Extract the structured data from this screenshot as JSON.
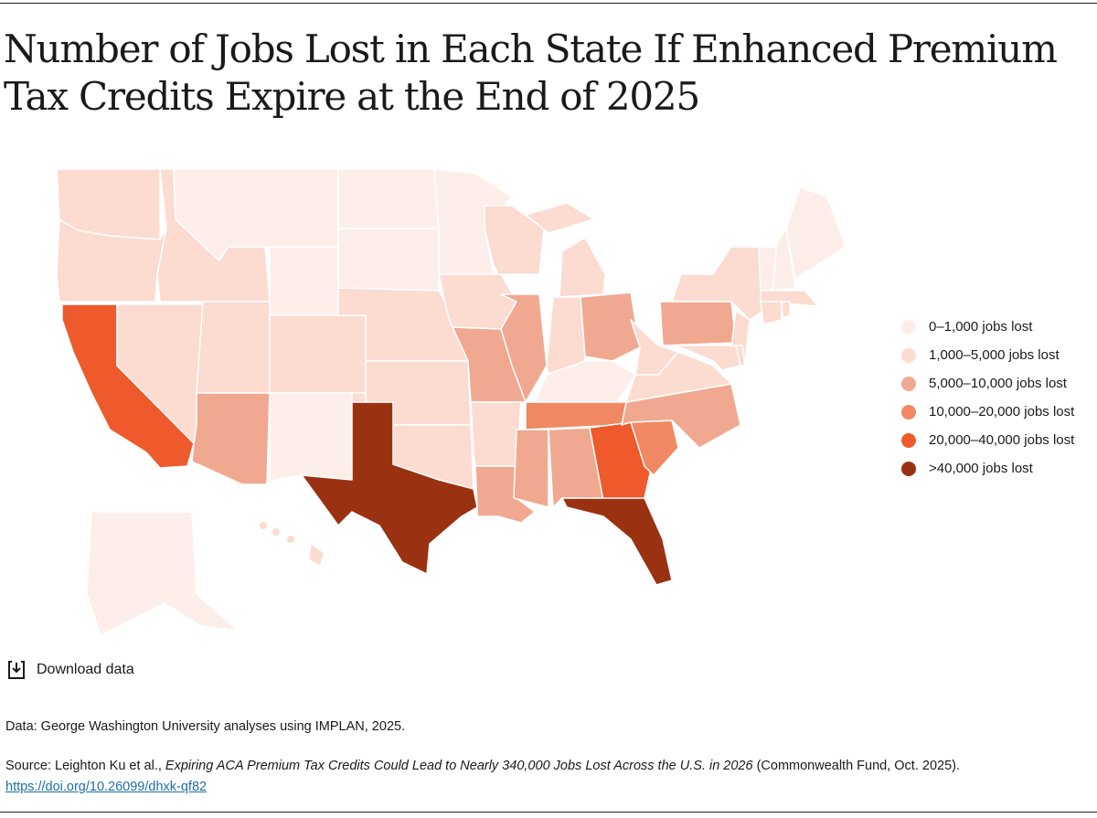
{
  "title": "Number of Jobs Lost in Each State If Enhanced Premium Tax Credits Expire at the End of 2025",
  "legend": [
    {
      "label": "0–1,000 jobs lost",
      "color": "#fdeeea"
    },
    {
      "label": "1,000–5,000 jobs lost",
      "color": "#fcdbd0"
    },
    {
      "label": "5,000–10,000 jobs lost",
      "color": "#f0a990"
    },
    {
      "label": "10,000–20,000 jobs lost",
      "color": "#f08963"
    },
    {
      "label": "20,000–40,000 jobs lost",
      "color": "#ee5a2b"
    },
    {
      "label": ">40,000 jobs lost",
      "color": "#9a3211"
    }
  ],
  "chart_data": {
    "type": "choropleth",
    "legend_placement": "right",
    "state_bins": {
      "WA": 1,
      "OR": 1,
      "CA": 4,
      "NV": 1,
      "ID": 1,
      "MT": 0,
      "WY": 0,
      "UT": 1,
      "AZ": 2,
      "NM": 0,
      "CO": 1,
      "ND": 0,
      "SD": 0,
      "NE": 1,
      "KS": 1,
      "OK": 1,
      "TX": 5,
      "MN": 0,
      "IA": 1,
      "MO": 2,
      "AR": 1,
      "LA": 2,
      "WI": 1,
      "IL": 2,
      "MI": 1,
      "IN": 1,
      "OH": 2,
      "KY": 0,
      "TN": 3,
      "MS": 2,
      "AL": 2,
      "GA": 4,
      "FL": 5,
      "SC": 3,
      "NC": 2,
      "VA": 1,
      "WV": 1,
      "PA": 2,
      "NY": 1,
      "NJ": 1,
      "MD": 1,
      "DE": 1,
      "VT": 0,
      "NH": 0,
      "ME": 0,
      "MA": 1,
      "CT": 1,
      "RI": 1,
      "AK": 0,
      "HI": 1
    }
  },
  "download_label": "Download data",
  "data_note": "Data: George Washington University analyses using IMPLAN, 2025.",
  "source": {
    "prefix": "Source: Leighton Ku et al., ",
    "title": "Expiring ACA Premium Tax Credits Could Lead to Nearly 340,000 Jobs Lost Across the U.S. in 2026",
    "suffix": " (Commonwealth Fund, Oct. 2025).",
    "link": "https://doi.org/10.26099/dhxk-qf82"
  }
}
